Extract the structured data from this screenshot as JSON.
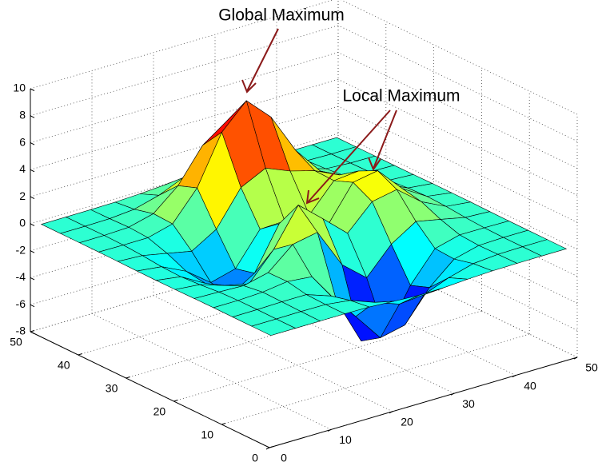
{
  "chart_data": {
    "type": "surface",
    "x": [
      1,
      5,
      9,
      13,
      17,
      21,
      25,
      29,
      33,
      37,
      41,
      45,
      49
    ],
    "y": [
      1,
      5,
      9,
      13,
      17,
      21,
      25,
      29,
      33,
      37,
      41,
      45,
      49
    ],
    "z": [
      [
        0,
        0,
        0,
        0,
        -0.03,
        -0.14,
        -0.24,
        -0.22,
        -0.11,
        -0.03,
        -0.01,
        0,
        0
      ],
      [
        0,
        0,
        0.02,
        0,
        -0.23,
        -0.91,
        -1.57,
        -1.41,
        -0.69,
        -0.18,
        -0.03,
        0,
        0
      ],
      [
        0,
        0.01,
        0.05,
        0.05,
        -0.59,
        -2.64,
        -4.75,
        -4.34,
        -2.1,
        -0.53,
        -0.06,
        0,
        0
      ],
      [
        0,
        0,
        0.08,
        0.33,
        0.15,
        -2.19,
        -5.68,
        -5.76,
        -2.63,
        -0.44,
        0.04,
        0.03,
        0
      ],
      [
        -0.01,
        -0.06,
        -0.13,
        0.3,
        1.86,
        2.22,
        -0.72,
        -2.22,
        -0.27,
        0.88,
        0.5,
        0.11,
        0.01
      ],
      [
        -0.03,
        -0.2,
        -0.8,
        -1.21,
        0.8,
        3.55,
        2.0,
        0.39,
        2.2,
        2.56,
        1.12,
        0.24,
        0.03
      ],
      [
        -0.04,
        -0.3,
        -1.33,
        -2.77,
        -1.65,
        1.48,
        0.98,
        0.38,
        2.94,
        3.27,
        1.41,
        0.3,
        0.03
      ],
      [
        -0.03,
        -0.25,
        -1.12,
        -2.49,
        -2.0,
        0.39,
        0.46,
        0.37,
        2.38,
        2.56,
        1.09,
        0.23,
        0.03
      ],
      [
        -0.01,
        -0.11,
        -0.48,
        -0.86,
        0.23,
        2.79,
        3.69,
        2.94,
        2.43,
        1.58,
        0.58,
        0.11,
        0.01
      ],
      [
        0,
        -0.02,
        -0.01,
        0.48,
        2.61,
        6.2,
        8.0,
        6.25,
        3.25,
        1.18,
        0.29,
        0.05,
        0
      ],
      [
        0,
        0.01,
        0.08,
        0.55,
        2.09,
        4.55,
        5.85,
        4.56,
        2.21,
        0.68,
        0.13,
        0.02,
        0
      ],
      [
        0,
        0,
        0.03,
        0.19,
        0.69,
        1.47,
        1.89,
        1.47,
        0.7,
        0.2,
        0.04,
        0,
        0
      ],
      [
        0,
        0,
        0.01,
        0.03,
        0.11,
        0.23,
        0.3,
        0.23,
        0.11,
        0.03,
        0.01,
        0,
        0
      ]
    ],
    "xlim": [
      0,
      50
    ],
    "ylim": [
      0,
      50
    ],
    "zlim": [
      -8,
      10
    ],
    "xticks": [
      0,
      10,
      20,
      30,
      40,
      50
    ],
    "yticks": [
      0,
      10,
      20,
      30,
      40,
      50
    ],
    "zticks": [
      -8,
      -6,
      -4,
      -2,
      0,
      2,
      4,
      6,
      8,
      10
    ],
    "grid": true,
    "colormap": "jet",
    "edge_color": "#000000",
    "annotations": [
      {
        "text": "Global Maximum",
        "color": "#8b1a1a"
      },
      {
        "text": "Local Maximum",
        "color": "#8b1a1a"
      }
    ]
  }
}
